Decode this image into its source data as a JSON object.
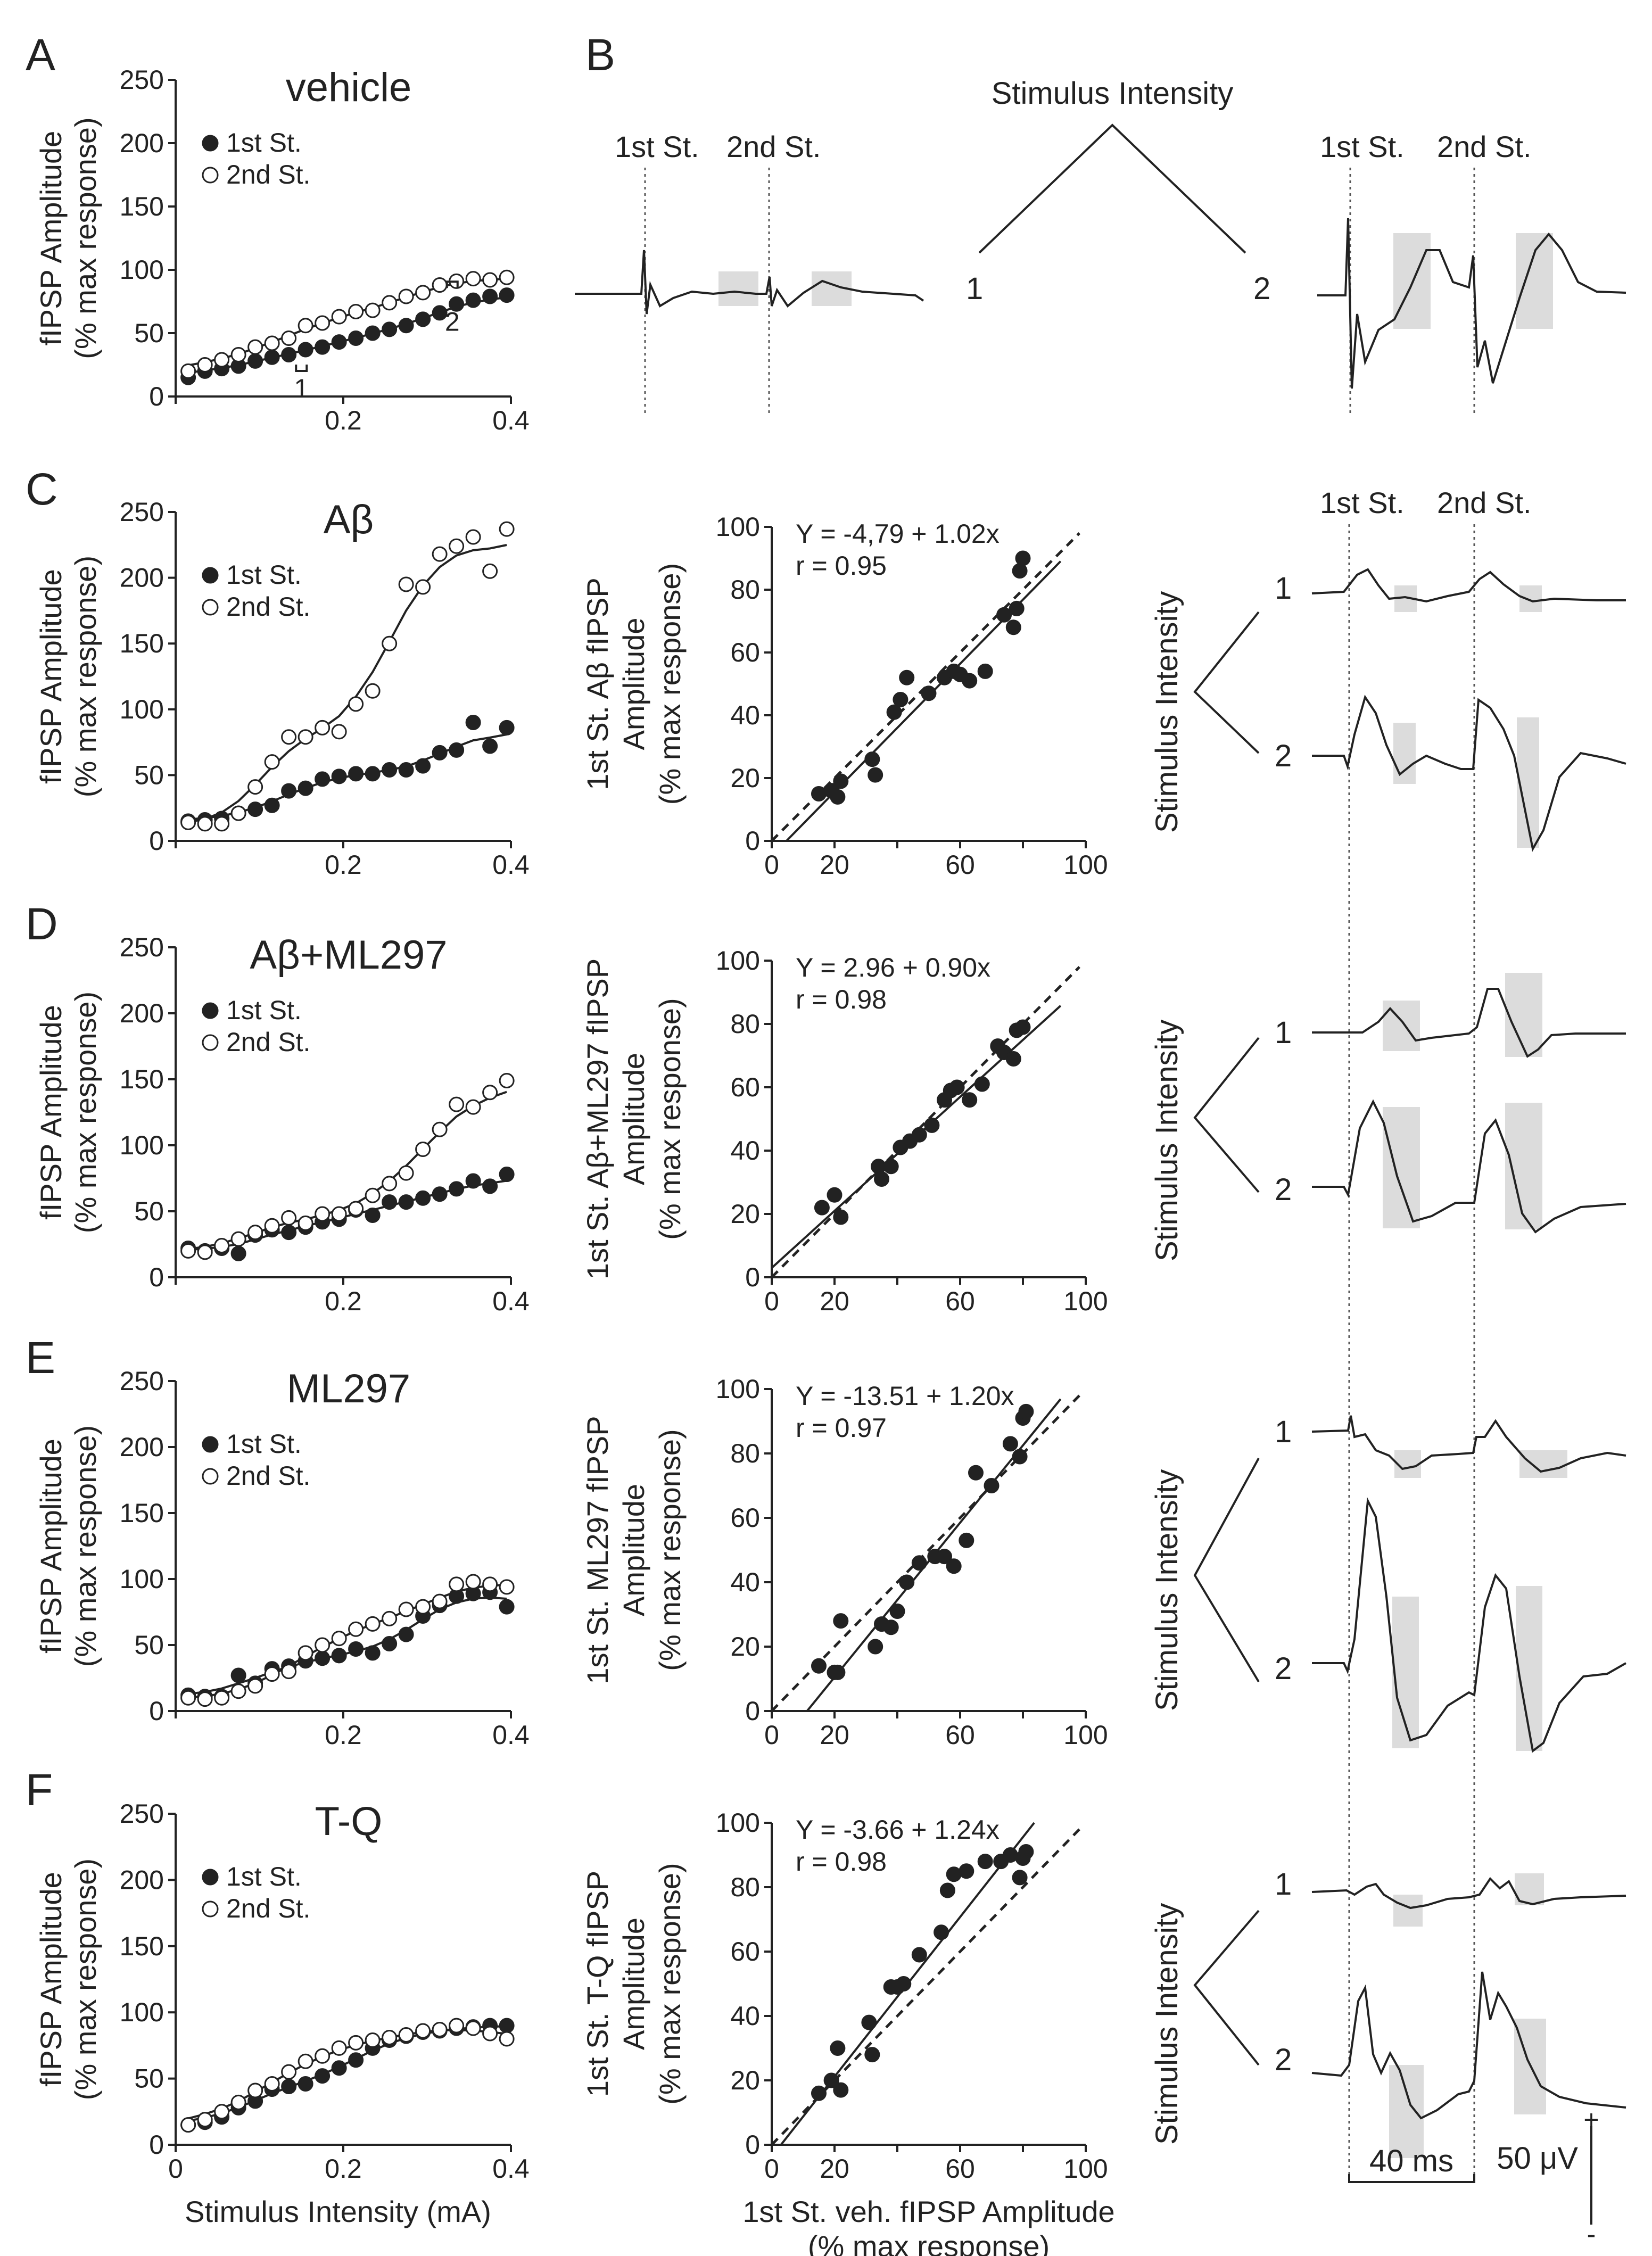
{
  "panel_letters": [
    "A",
    "B",
    "C",
    "D",
    "E",
    "F"
  ],
  "colors": {
    "ink": "#222222",
    "shade": "#dcdcdc",
    "background": "#ffffff"
  },
  "scale_bar": {
    "time_label": "40 ms",
    "voltage_label": "50 μV",
    "plus": "+",
    "minus": "-"
  },
  "trace_panel_labels": {
    "first": "1st St.",
    "second": "2nd St.",
    "stim_title": "Stimulus Intensity",
    "level1": "1",
    "level2": "2"
  },
  "chart_data": [
    {
      "id": "A",
      "type": "scatter",
      "title": "vehicle",
      "xlabel": "",
      "ylabel": [
        "fIPSP Amplitude",
        "(% max response)"
      ],
      "xlim": [
        0,
        0.4
      ],
      "ylim": [
        0,
        250
      ],
      "xticks": [
        "0.2",
        "0.4"
      ],
      "yticks": [
        "0",
        "50",
        "100",
        "150",
        "200",
        "250"
      ],
      "legend": [
        "1st St.",
        "2nd St."
      ],
      "markers": [
        {
          "x": 0.15,
          "label": "1"
        },
        {
          "x": 0.33,
          "label": "2"
        }
      ],
      "x": [
        0.015,
        0.035,
        0.055,
        0.075,
        0.095,
        0.115,
        0.135,
        0.155,
        0.175,
        0.195,
        0.215,
        0.235,
        0.255,
        0.275,
        0.295,
        0.315,
        0.335,
        0.355,
        0.375,
        0.395
      ],
      "series": [
        {
          "name": "1st St.",
          "fill": "filled",
          "values": [
            15,
            20,
            22,
            24,
            28,
            31,
            33,
            37,
            39,
            43,
            46,
            50,
            53,
            56,
            61,
            66,
            73,
            76,
            79,
            80
          ]
        },
        {
          "name": "2nd St.",
          "fill": "open",
          "values": [
            20,
            25,
            29,
            33,
            39,
            42,
            46,
            56,
            58,
            63,
            67,
            68,
            74,
            79,
            82,
            88,
            91,
            93,
            92,
            94
          ]
        }
      ]
    },
    {
      "id": "C",
      "type": "scatter",
      "title": "Aβ",
      "xlabel": "",
      "ylabel": [
        "fIPSP Amplitude",
        "(% max response)"
      ],
      "xlim": [
        0,
        0.4
      ],
      "ylim": [
        0,
        250
      ],
      "xticks": [
        "0.2",
        "0.4"
      ],
      "yticks": [
        "0",
        "50",
        "100",
        "150",
        "200",
        "250"
      ],
      "legend": [
        "1st St.",
        "2nd St."
      ],
      "x": [
        0.015,
        0.035,
        0.055,
        0.075,
        0.095,
        0.115,
        0.135,
        0.155,
        0.175,
        0.195,
        0.215,
        0.235,
        0.255,
        0.275,
        0.295,
        0.315,
        0.335,
        0.355,
        0.375,
        0.395
      ],
      "series": [
        {
          "name": "1st St.",
          "fill": "filled",
          "values": [
            15,
            16,
            17,
            21,
            24,
            27,
            38,
            40,
            47,
            49,
            51,
            51,
            54,
            54,
            57,
            67,
            69,
            90,
            72,
            86
          ]
        },
        {
          "name": "2nd St.",
          "fill": "open",
          "values": [
            14,
            13,
            13,
            21,
            41,
            60,
            79,
            79,
            86,
            83,
            104,
            114,
            150,
            195,
            193,
            218,
            224,
            231,
            205,
            237
          ]
        }
      ]
    },
    {
      "id": "D",
      "type": "scatter",
      "title": "Aβ+ML297",
      "xlabel": "",
      "ylabel": [
        "fIPSP Amplitude",
        "(% max response)"
      ],
      "xlim": [
        0,
        0.4
      ],
      "ylim": [
        0,
        250
      ],
      "xticks": [
        "0.2",
        "0.4"
      ],
      "yticks": [
        "0",
        "50",
        "100",
        "150",
        "200",
        "250"
      ],
      "legend": [
        "1st St.",
        "2nd St."
      ],
      "x": [
        0.015,
        0.035,
        0.055,
        0.075,
        0.095,
        0.115,
        0.135,
        0.155,
        0.175,
        0.195,
        0.215,
        0.235,
        0.255,
        0.275,
        0.295,
        0.315,
        0.335,
        0.355,
        0.375,
        0.395
      ],
      "series": [
        {
          "name": "1st St.",
          "fill": "filled",
          "values": [
            22,
            20,
            22,
            18,
            32,
            36,
            34,
            38,
            42,
            44,
            51,
            47,
            57,
            57,
            60,
            63,
            67,
            73,
            69,
            78
          ]
        },
        {
          "name": "2nd St.",
          "fill": "open",
          "values": [
            20,
            19,
            24,
            29,
            34,
            39,
            45,
            41,
            48,
            48,
            52,
            62,
            71,
            79,
            97,
            112,
            131,
            129,
            140,
            149
          ]
        }
      ]
    },
    {
      "id": "E",
      "type": "scatter",
      "title": "ML297",
      "xlabel": "",
      "ylabel": [
        "fIPSP Amplitude",
        "(% max response)"
      ],
      "xlim": [
        0,
        0.4
      ],
      "ylim": [
        0,
        250
      ],
      "xticks": [
        "0.2",
        "0.4"
      ],
      "yticks": [
        "0",
        "50",
        "100",
        "150",
        "200",
        "250"
      ],
      "legend": [
        "1st St.",
        "2nd St."
      ],
      "x": [
        0.015,
        0.035,
        0.055,
        0.075,
        0.095,
        0.115,
        0.135,
        0.155,
        0.175,
        0.195,
        0.215,
        0.235,
        0.255,
        0.275,
        0.295,
        0.315,
        0.335,
        0.355,
        0.375,
        0.395
      ],
      "series": [
        {
          "name": "1st St.",
          "fill": "filled",
          "values": [
            12,
            11,
            11,
            27,
            21,
            32,
            34,
            38,
            40,
            42,
            47,
            44,
            51,
            58,
            72,
            80,
            87,
            89,
            90,
            79
          ]
        },
        {
          "name": "2nd St.",
          "fill": "open",
          "values": [
            10,
            9,
            10,
            15,
            19,
            28,
            30,
            44,
            50,
            55,
            62,
            66,
            70,
            77,
            79,
            83,
            96,
            98,
            96,
            94
          ]
        }
      ]
    },
    {
      "id": "F",
      "type": "scatter",
      "title": "T-Q",
      "xlabel": "Stimulus Intensity (mA)",
      "ylabel": [
        "fIPSP Amplitude",
        "(% max response)"
      ],
      "xlim": [
        0,
        0.4
      ],
      "ylim": [
        0,
        250
      ],
      "xticks": [
        "0",
        "0.2",
        "0.4"
      ],
      "yticks": [
        "0",
        "50",
        "100",
        "150",
        "200",
        "250"
      ],
      "legend": [
        "1st St.",
        "2nd St."
      ],
      "x": [
        0.015,
        0.035,
        0.055,
        0.075,
        0.095,
        0.115,
        0.135,
        0.155,
        0.175,
        0.195,
        0.215,
        0.235,
        0.255,
        0.275,
        0.295,
        0.315,
        0.335,
        0.355,
        0.375,
        0.395
      ],
      "series": [
        {
          "name": "1st St.",
          "fill": "filled",
          "values": [
            15,
            17,
            21,
            28,
            33,
            42,
            44,
            46,
            52,
            58,
            64,
            73,
            79,
            82,
            85,
            86,
            88,
            89,
            90,
            90
          ]
        },
        {
          "name": "2nd St.",
          "fill": "open",
          "values": [
            15,
            19,
            25,
            32,
            41,
            46,
            55,
            63,
            67,
            73,
            77,
            79,
            81,
            83,
            86,
            87,
            90,
            88,
            84,
            80
          ]
        }
      ]
    },
    {
      "id": "C2",
      "type": "scatter",
      "title": "",
      "equation": "Y = -4,79 + 1.02x",
      "r": "r = 0.95",
      "xlabel": "",
      "ylabel": [
        "1st St. Aβ fIPSP",
        "Amplitude",
        "(% max response)"
      ],
      "xlim": [
        0,
        100
      ],
      "ylim": [
        0,
        100
      ],
      "xticks": [
        "0",
        "20",
        "60",
        "100"
      ],
      "yticks": [
        "0",
        "20",
        "40",
        "60",
        "80",
        "100"
      ],
      "fit": {
        "intercept": -4.79,
        "slope": 1.02
      },
      "identity_line": true,
      "x": [
        15,
        19,
        21,
        22,
        32,
        33,
        39,
        41,
        43,
        50,
        55,
        58,
        60,
        63,
        68,
        74,
        77,
        78,
        79,
        80
      ],
      "y": [
        15,
        16,
        14,
        19,
        26,
        21,
        41,
        45,
        52,
        47,
        52,
        54,
        53,
        51,
        54,
        72,
        68,
        74,
        86,
        90
      ]
    },
    {
      "id": "D2",
      "type": "scatter",
      "title": "",
      "equation": "Y = 2.96 + 0.90x",
      "r": "r = 0.98",
      "xlabel": "",
      "ylabel": [
        "1st St. Aβ+ML297 fIPSP",
        "Amplitude",
        "(% max response)"
      ],
      "xlim": [
        0,
        100
      ],
      "ylim": [
        0,
        100
      ],
      "xticks": [
        "0",
        "20",
        "60",
        "100"
      ],
      "yticks": [
        "0",
        "20",
        "40",
        "60",
        "80",
        "100"
      ],
      "fit": {
        "intercept": 2.96,
        "slope": 0.9
      },
      "identity_line": true,
      "x": [
        16,
        20,
        22,
        34,
        35,
        38,
        41,
        44,
        47,
        51,
        55,
        57,
        59,
        63,
        67,
        72,
        74,
        77,
        78,
        80
      ],
      "y": [
        22,
        26,
        19,
        35,
        31,
        35,
        41,
        43,
        45,
        48,
        56,
        59,
        60,
        56,
        61,
        73,
        71,
        69,
        78,
        79
      ]
    },
    {
      "id": "E2",
      "type": "scatter",
      "title": "",
      "equation": "Y = -13.51 + 1.20x",
      "r": "r = 0.97",
      "xlabel": "",
      "ylabel": [
        "1st St. ML297 fIPSP",
        "Amplitude",
        "(% max response)"
      ],
      "xlim": [
        0,
        100
      ],
      "ylim": [
        0,
        100
      ],
      "xticks": [
        "0",
        "20",
        "60",
        "100"
      ],
      "yticks": [
        "0",
        "20",
        "40",
        "60",
        "80",
        "100"
      ],
      "fit": {
        "intercept": -13.51,
        "slope": 1.2
      },
      "identity_line": true,
      "x": [
        15,
        20,
        21,
        22,
        33,
        35,
        38,
        40,
        43,
        47,
        52,
        55,
        58,
        62,
        65,
        70,
        76,
        79,
        80,
        81
      ],
      "y": [
        14,
        12,
        12,
        28,
        20,
        27,
        26,
        31,
        40,
        46,
        48,
        48,
        45,
        53,
        74,
        70,
        83,
        79,
        91,
        93
      ]
    },
    {
      "id": "F2",
      "type": "scatter",
      "title": "",
      "equation": "Y = -3.66 + 1.24x",
      "r": "r = 0.98",
      "xlabel": "1st St. veh. fIPSP Amplitude",
      "xlabel2": "(% max response)",
      "ylabel": [
        "1st St. T-Q fIPSP",
        "Amplitude",
        "(% max response)"
      ],
      "xlim": [
        0,
        100
      ],
      "ylim": [
        0,
        100
      ],
      "xticks": [
        "0",
        "20",
        "60",
        "100"
      ],
      "yticks": [
        "0",
        "20",
        "40",
        "60",
        "80",
        "100"
      ],
      "fit": {
        "intercept": -3.66,
        "slope": 1.24
      },
      "identity_line": true,
      "x": [
        15,
        19,
        21,
        22,
        31,
        32,
        38,
        40,
        42,
        47,
        54,
        56,
        58,
        62,
        68,
        73,
        76,
        79,
        80,
        81
      ],
      "y": [
        16,
        20,
        30,
        17,
        38,
        28,
        49,
        49,
        50,
        59,
        66,
        79,
        84,
        85,
        88,
        88,
        90,
        83,
        89,
        91
      ]
    }
  ]
}
